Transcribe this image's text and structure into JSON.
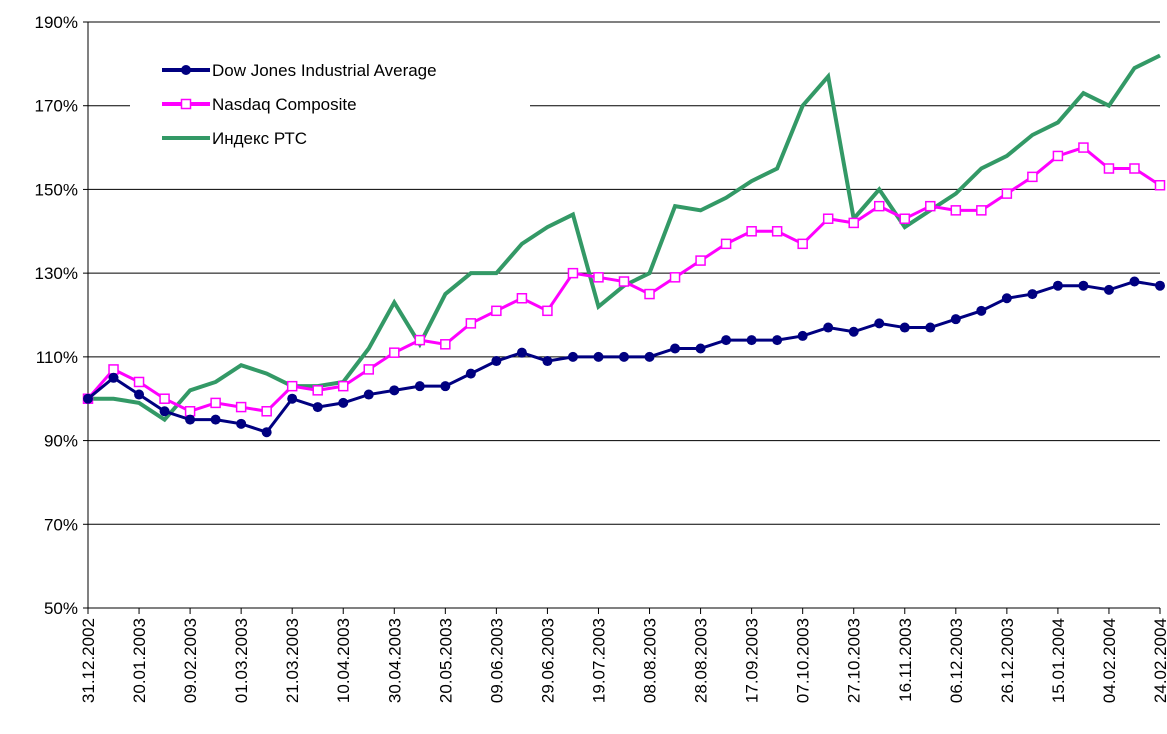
{
  "chart_data": {
    "type": "line",
    "categories": [
      "31.12.2002",
      null,
      "20.01.2003",
      null,
      "09.02.2003",
      null,
      "01.03.2003",
      null,
      "21.03.2003",
      null,
      "10.04.2003",
      null,
      "30.04.2003",
      null,
      "20.05.2003",
      null,
      "09.06.2003",
      null,
      "29.06.2003",
      null,
      "19.07.2003",
      null,
      "08.08.2003",
      null,
      "28.08.2003",
      null,
      "17.09.2003",
      null,
      "07.10.2003",
      null,
      "27.10.2003",
      null,
      "16.11.2003",
      null,
      "06.12.2003",
      null,
      "26.12.2003",
      null,
      "15.01.2004",
      null,
      "04.02.2004",
      null,
      "24.02.2004"
    ],
    "series": [
      {
        "name": "Dow Jones Industrial Average",
        "color": "#000080",
        "marker": "circle",
        "values": [
          100,
          105,
          101,
          97,
          95,
          95,
          94,
          92,
          100,
          98,
          99,
          101,
          102,
          103,
          103,
          106,
          109,
          111,
          109,
          110,
          110,
          110,
          110,
          112,
          112,
          114,
          114,
          114,
          115,
          117,
          116,
          118,
          117,
          117,
          119,
          121,
          124,
          125,
          127,
          127,
          126,
          128,
          127
        ]
      },
      {
        "name": "Nasdaq Composite",
        "color": "#ff00ff",
        "marker": "square",
        "values": [
          100,
          107,
          104,
          100,
          97,
          99,
          98,
          97,
          103,
          102,
          103,
          107,
          111,
          114,
          113,
          118,
          121,
          124,
          121,
          130,
          129,
          128,
          125,
          129,
          133,
          137,
          140,
          140,
          137,
          143,
          142,
          146,
          143,
          146,
          145,
          145,
          149,
          153,
          158,
          160,
          155,
          155,
          151
        ]
      },
      {
        "name": "Индекс РТС",
        "color": "#339966",
        "marker": "none",
        "values": [
          100,
          100,
          99,
          95,
          102,
          104,
          108,
          106,
          103,
          103,
          104,
          112,
          123,
          113,
          125,
          130,
          130,
          137,
          141,
          144,
          122,
          127,
          130,
          146,
          145,
          148,
          152,
          155,
          170,
          177,
          143,
          150,
          141,
          145,
          149,
          155,
          158,
          163,
          166,
          173,
          170,
          179,
          182
        ]
      }
    ],
    "ylim": [
      50,
      190
    ],
    "yticks": [
      {
        "value": 50,
        "label": "50%"
      },
      {
        "value": 70,
        "label": "70%"
      },
      {
        "value": 90,
        "label": "90%"
      },
      {
        "value": 110,
        "label": "110%"
      },
      {
        "value": 130,
        "label": "130%"
      },
      {
        "value": 150,
        "label": "150%"
      },
      {
        "value": 170,
        "label": "170%"
      },
      {
        "value": 190,
        "label": "190%"
      }
    ],
    "grid": true,
    "legend": "upper left"
  }
}
